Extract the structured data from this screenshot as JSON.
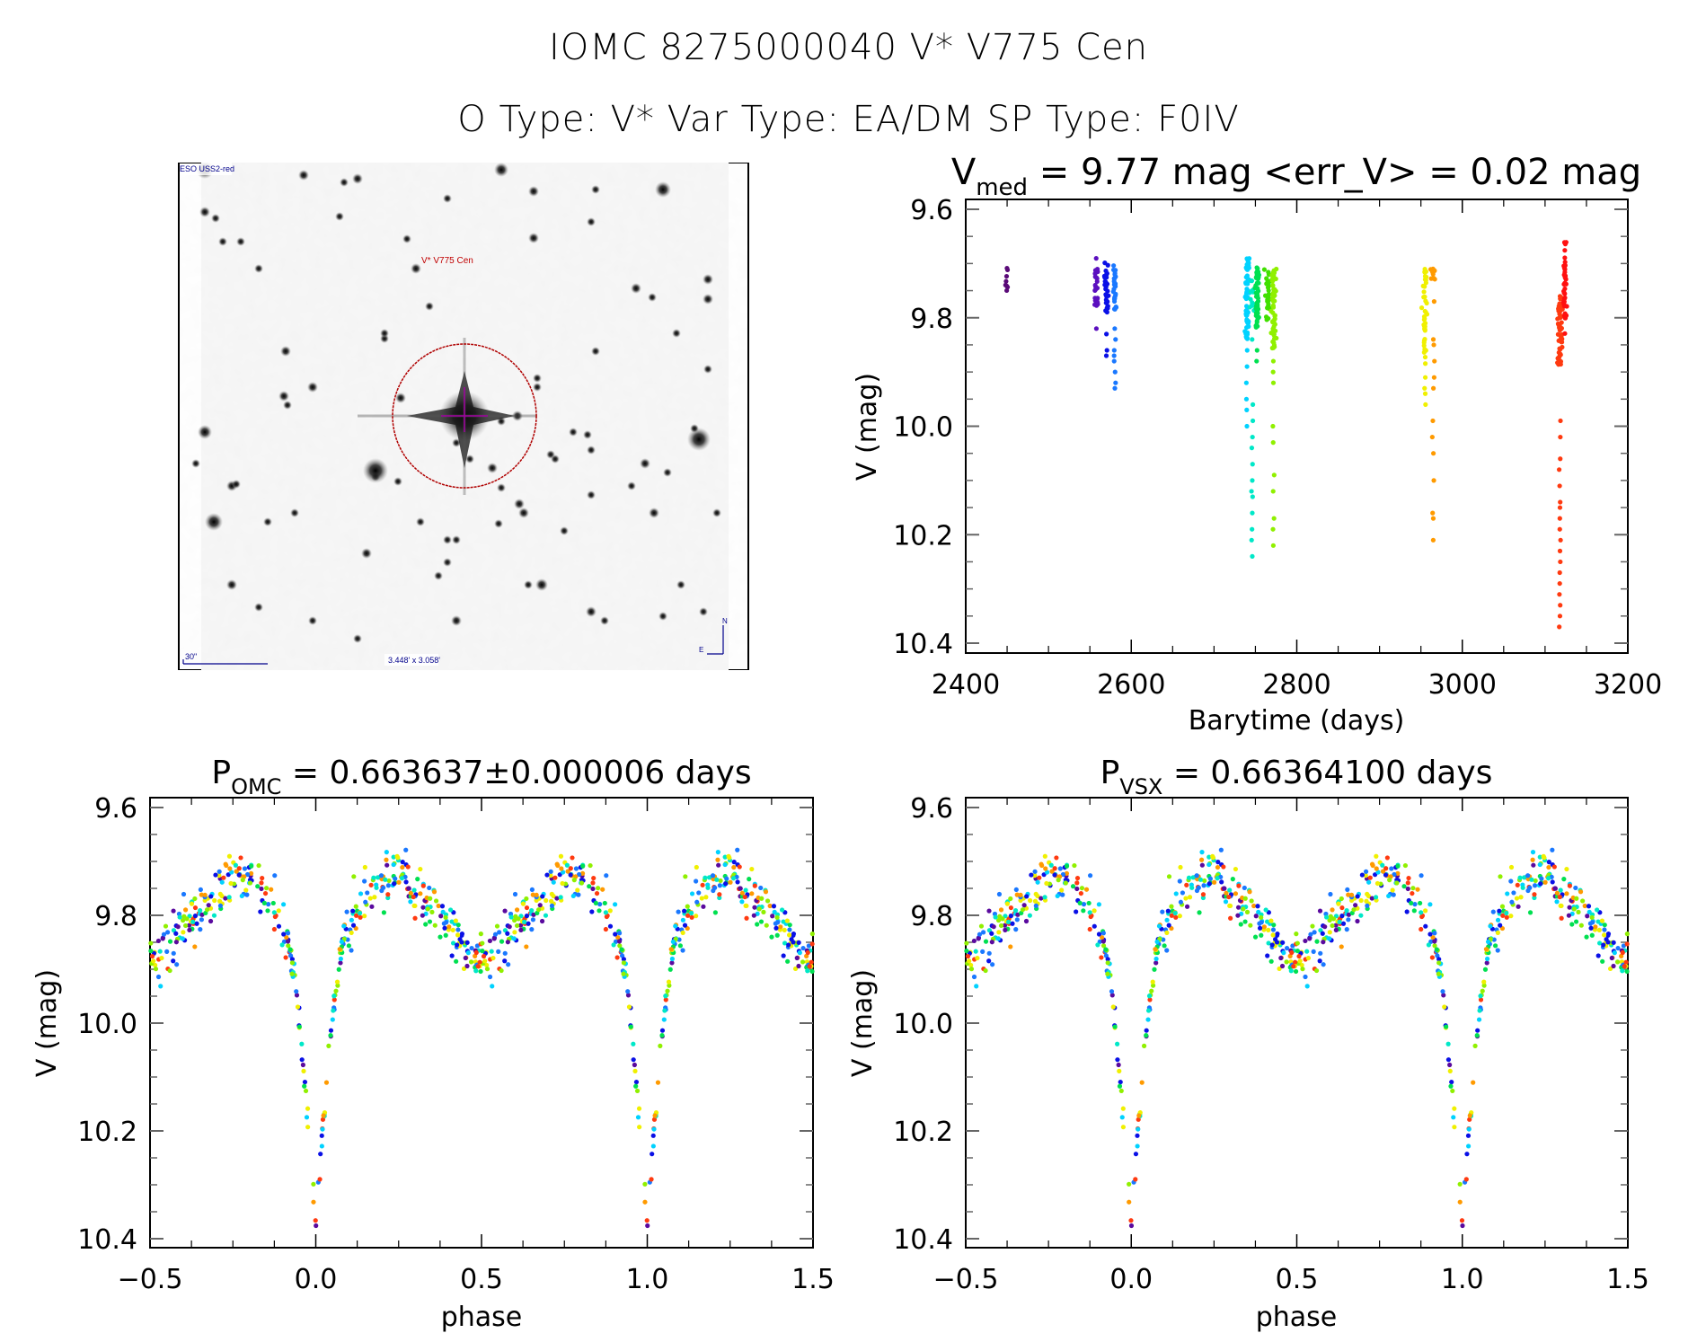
{
  "header": {
    "title_line1": "IOMC 8275000040    V* V775 Cen",
    "title_line2": "O Type: V*  Var Type: EA/DM  SP Type: F0IV"
  },
  "sky_image": {
    "survey_label": "ESO USS2-red",
    "target_label": "V* V775 Cen",
    "scale_label": "30\"",
    "fov_label": "3.448' x 3.058'",
    "north_label": "N",
    "east_label": "E",
    "circle_color": "#b00000",
    "label_color": "#c00000",
    "annotation_color": "#00008b"
  },
  "chart_data": [
    {
      "id": "lightcurve",
      "type": "scatter",
      "title_main": "V",
      "title_sub": "med",
      "title_rest": " = 9.77 mag <err_V> = 0.02 mag",
      "xlabel": "Barytime (days)",
      "ylabel": "V (mag)",
      "xlim": [
        2400,
        3200
      ],
      "ylim": [
        9.6,
        10.4
      ],
      "y_inverted": true,
      "xticks": [
        2400,
        2600,
        2800,
        3000,
        3200
      ],
      "xtick_labels": [
        "2400",
        "2600",
        "2800",
        "3000",
        "3200"
      ],
      "yticks": [
        9.6,
        9.8,
        10.0,
        10.2,
        10.4
      ],
      "ytick_labels": [
        "9.6",
        "9.8",
        "10.0",
        "10.2",
        "10.4"
      ],
      "color_map": "rainbow by time",
      "epochs": [
        {
          "t": 2450,
          "color": "#5a0a78",
          "vmin": 9.7,
          "vmax": 9.75,
          "n": 8,
          "faint": []
        },
        {
          "t": 2558,
          "color": "#5b0fbf",
          "vmin": 9.69,
          "vmax": 9.78,
          "n": 22,
          "faint": [
            9.82
          ]
        },
        {
          "t": 2570,
          "color": "#0a10e6",
          "vmin": 9.69,
          "vmax": 9.79,
          "n": 28,
          "faint": [
            9.83,
            9.86,
            9.87
          ]
        },
        {
          "t": 2580,
          "color": "#1a78ff",
          "vmin": 9.7,
          "vmax": 9.79,
          "n": 26,
          "faint": [
            9.82,
            9.84,
            9.86,
            9.87,
            9.88,
            9.9,
            9.92,
            9.93
          ]
        },
        {
          "t": 2740,
          "color": "#00d2ff",
          "vmin": 9.69,
          "vmax": 9.84,
          "n": 60,
          "faint": [
            9.86,
            9.89,
            9.92,
            9.95,
            9.97,
            10.0
          ]
        },
        {
          "t": 2746,
          "color": "#00e8c8",
          "vmin": 9.73,
          "vmax": 9.79,
          "n": 12,
          "faint": [
            9.96,
            9.99,
            10.02,
            10.07,
            10.1,
            10.12,
            10.16,
            10.19,
            10.24,
            10.21,
            10.13,
            10.04,
            9.84
          ]
        },
        {
          "t": 2752,
          "color": "#00e050",
          "vmin": 9.69,
          "vmax": 9.82,
          "n": 50,
          "faint": [
            9.86,
            9.88
          ]
        },
        {
          "t": 2765,
          "color": "#40e000",
          "vmin": 9.71,
          "vmax": 9.81,
          "n": 30,
          "faint": []
        },
        {
          "t": 2772,
          "color": "#90f000",
          "vmin": 9.71,
          "vmax": 9.86,
          "n": 60,
          "faint": [
            9.88,
            9.9,
            9.92,
            10.0,
            10.03,
            10.09,
            10.12,
            10.17,
            10.19,
            10.22
          ]
        },
        {
          "t": 2955,
          "color": "#f0f000",
          "vmin": 9.71,
          "vmax": 9.89,
          "n": 40,
          "faint": [
            9.91,
            9.93,
            9.94,
            9.96
          ]
        },
        {
          "t": 2965,
          "color": "#ff9a00",
          "vmin": 9.7,
          "vmax": 9.73,
          "n": 14,
          "faint": [
            9.77,
            9.84,
            9.85,
            9.88,
            9.91,
            9.93,
            9.99,
            10.02,
            10.05,
            10.1,
            10.16,
            10.17,
            10.21
          ]
        },
        {
          "t": 3118,
          "color": "#ff3a10",
          "vmin": 9.76,
          "vmax": 9.89,
          "n": 60,
          "faint": [
            9.99,
            10.02,
            10.06,
            10.08,
            10.11,
            10.14,
            10.15,
            10.17,
            10.19,
            10.21,
            10.23,
            10.25,
            10.27,
            10.29,
            10.31,
            10.33,
            10.35,
            10.37
          ]
        },
        {
          "t": 3124,
          "color": "#ff1010",
          "vmin": 9.66,
          "vmax": 9.83,
          "n": 40,
          "faint": []
        }
      ]
    },
    {
      "id": "phase_omc",
      "type": "scatter",
      "title_main": "P",
      "title_sub": "OMC",
      "title_rest": " = 0.663637±0.000006 days",
      "period_days": 0.663637,
      "period_err_days": 6e-06,
      "xlabel": "phase",
      "ylabel": "V (mag)",
      "xlim": [
        -0.5,
        1.5
      ],
      "ylim": [
        9.6,
        10.4
      ],
      "y_inverted": true,
      "xticks": [
        -0.5,
        0.0,
        0.5,
        1.0,
        1.5
      ],
      "xtick_labels": [
        "−0.5",
        "0.0",
        "0.5",
        "1.0",
        "1.5"
      ],
      "yticks": [
        9.6,
        9.8,
        10.0,
        10.2,
        10.4
      ],
      "ytick_labels": [
        "9.6",
        "9.8",
        "10.0",
        "10.2",
        "10.4"
      ],
      "light_curve_model": {
        "max_mag": 9.72,
        "primary_min_phase": 0.0,
        "primary_min_mag": 10.37,
        "secondary_min_phase": 0.5,
        "secondary_min_mag": 9.88,
        "eclipse_half_width": 0.09
      }
    },
    {
      "id": "phase_vsx",
      "type": "scatter",
      "title_main": "P",
      "title_sub": "VSX",
      "title_rest": " = 0.66364100 days",
      "period_days": 0.663641,
      "xlabel": "phase",
      "ylabel": "V (mag)",
      "xlim": [
        -0.5,
        1.5
      ],
      "ylim": [
        9.6,
        10.4
      ],
      "y_inverted": true,
      "xticks": [
        -0.5,
        0.0,
        0.5,
        1.0,
        1.5
      ],
      "xtick_labels": [
        "−0.5",
        "0.0",
        "0.5",
        "1.0",
        "1.5"
      ],
      "yticks": [
        9.6,
        9.8,
        10.0,
        10.2,
        10.4
      ],
      "ytick_labels": [
        "9.6",
        "9.8",
        "10.0",
        "10.2",
        "10.4"
      ],
      "light_curve_model": {
        "max_mag": 9.72,
        "primary_min_phase": 0.0,
        "primary_min_mag": 10.37,
        "secondary_min_phase": 0.5,
        "secondary_min_mag": 9.88,
        "eclipse_half_width": 0.09
      }
    }
  ]
}
